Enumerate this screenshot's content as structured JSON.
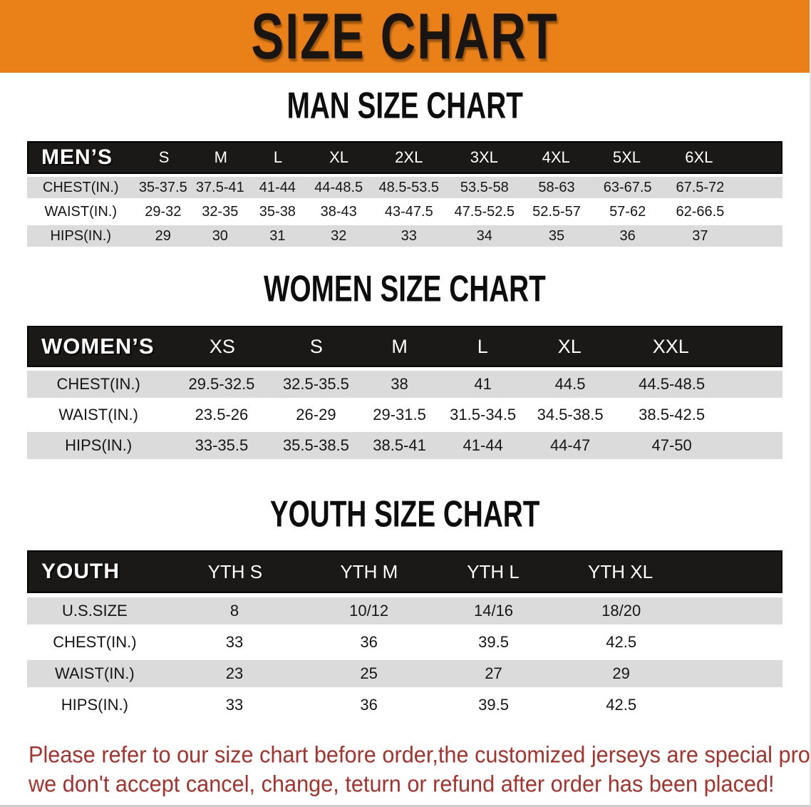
{
  "banner": {
    "title": "SIZE CHART"
  },
  "sections": {
    "men": {
      "heading": "MAN SIZE CHART"
    },
    "women": {
      "heading": "WOMEN SIZE CHART"
    },
    "youth": {
      "heading": "YOUTH SIZE CHART"
    }
  },
  "tables": {
    "men": {
      "label": "MEN’S",
      "columns": [
        "S",
        "M",
        "L",
        "XL",
        "2XL",
        "3XL",
        "4XL",
        "5XL",
        "6XL"
      ],
      "rows": [
        {
          "label": "CHEST(IN.)",
          "values": [
            "35-37.5",
            "37.5-41",
            "41-44",
            "44-48.5",
            "48.5-53.5",
            "53.5-58",
            "58-63",
            "63-67.5",
            "67.5-72"
          ]
        },
        {
          "label": "WAIST(IN.)",
          "values": [
            "29-32",
            "32-35",
            "35-38",
            "38-43",
            "43-47.5",
            "47.5-52.5",
            "52.5-57",
            "57-62",
            "62-66.5"
          ]
        },
        {
          "label": "HIPS(IN.)",
          "values": [
            "29",
            "30",
            "31",
            "32",
            "33",
            "34",
            "35",
            "36",
            "37"
          ]
        }
      ]
    },
    "women": {
      "label": "WOMEN’S",
      "columns": [
        "XS",
        "S",
        "M",
        "L",
        "XL",
        "XXL"
      ],
      "rows": [
        {
          "label": "CHEST(IN.)",
          "values": [
            "29.5-32.5",
            "32.5-35.5",
            "38",
            "41",
            "44.5",
            "44.5-48.5"
          ]
        },
        {
          "label": "WAIST(IN.)",
          "values": [
            "23.5-26",
            "26-29",
            "29-31.5",
            "31.5-34.5",
            "34.5-38.5",
            "38.5-42.5"
          ]
        },
        {
          "label": "HIPS(IN.)",
          "values": [
            "33-35.5",
            "35.5-38.5",
            "38.5-41",
            "41-44",
            "44-47",
            "47-50"
          ]
        }
      ]
    },
    "youth": {
      "label": "YOUTH",
      "columns": [
        "YTH S",
        "YTH M",
        "YTH L",
        "YTH XL"
      ],
      "rows": [
        {
          "label": "U.S.SIZE",
          "values": [
            "8",
            "10/12",
            "14/16",
            "18/20"
          ]
        },
        {
          "label": "CHEST(IN.)",
          "values": [
            "33",
            "36",
            "39.5",
            "42.5"
          ]
        },
        {
          "label": "WAIST(IN.)",
          "values": [
            "23",
            "25",
            "27",
            "29"
          ]
        },
        {
          "label": "HIPS(IN.)",
          "values": [
            "33",
            "36",
            "39.5",
            "42.5"
          ]
        }
      ]
    }
  },
  "disclaimer": {
    "lines": [
      "Please refer to our size chart before order,the customized jerseys are special products,",
      "we don't accept cancel, change, teturn or refund after order has been placed!"
    ]
  },
  "colors": {
    "banner_orange": "#E98118",
    "header_black": "#1B1918",
    "row_gray": "#DBDBDB",
    "disclaimer_red": "#A8322B"
  }
}
